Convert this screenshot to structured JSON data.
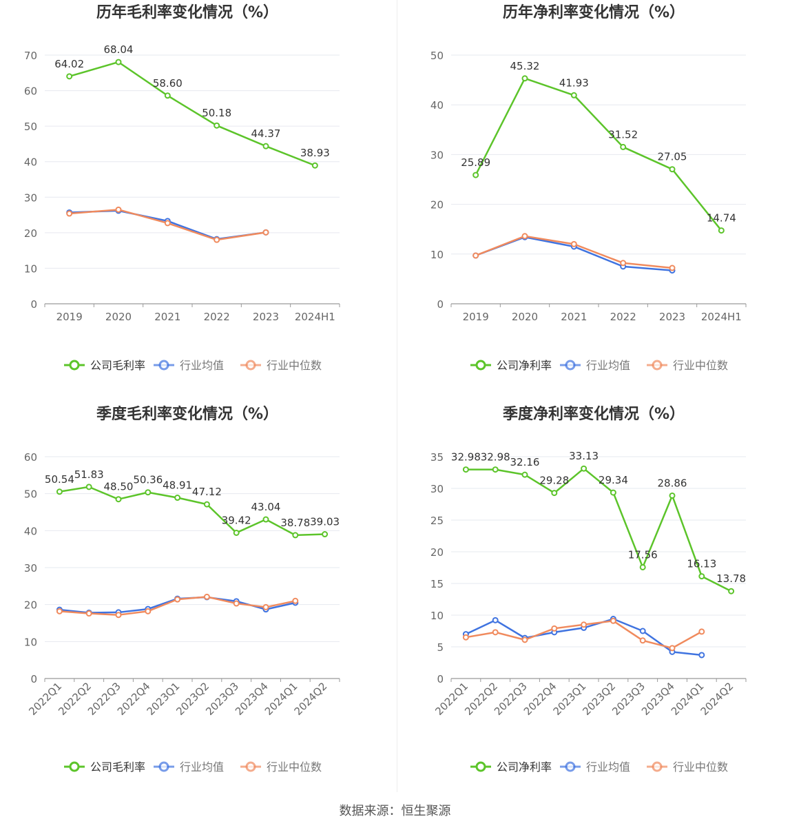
{
  "chart_data": [
    {
      "type": "line",
      "title": "历年毛利率变化情况（%）",
      "categories": [
        "2019",
        "2020",
        "2021",
        "2022",
        "2023",
        "2024H1"
      ],
      "series": [
        {
          "name": "公司毛利率",
          "values": [
            64.02,
            68.04,
            58.6,
            50.18,
            44.37,
            38.93
          ],
          "labels": [
            "64.02",
            "68.04",
            "58.60",
            "50.18",
            "44.37",
            "38.93"
          ],
          "color": "#5cc42a"
        },
        {
          "name": "行业均值",
          "values": [
            25.7,
            26.2,
            23.3,
            18.2,
            20.1,
            null
          ],
          "color": "#3f73e0"
        },
        {
          "name": "行业中位数",
          "values": [
            25.4,
            26.5,
            22.7,
            18.0,
            20.1,
            null
          ],
          "color": "#f08a5d"
        }
      ],
      "ylim": [
        0,
        70
      ],
      "yticks": [
        0,
        10,
        20,
        30,
        40,
        50,
        60,
        70
      ],
      "legend": "bottom",
      "grid": true
    },
    {
      "type": "line",
      "title": "历年净利率变化情况（%）",
      "categories": [
        "2019",
        "2020",
        "2021",
        "2022",
        "2023",
        "2024H1"
      ],
      "series": [
        {
          "name": "公司净利率",
          "values": [
            25.89,
            45.32,
            41.93,
            31.52,
            27.05,
            14.74
          ],
          "labels": [
            "25.89",
            "45.32",
            "41.93",
            "31.52",
            "27.05",
            "14.74"
          ],
          "color": "#5cc42a"
        },
        {
          "name": "行业均值",
          "values": [
            9.7,
            13.4,
            11.5,
            7.5,
            6.7,
            null
          ],
          "color": "#3f73e0"
        },
        {
          "name": "行业中位数",
          "values": [
            9.7,
            13.6,
            12.0,
            8.2,
            7.2,
            null
          ],
          "color": "#f08a5d"
        }
      ],
      "ylim": [
        0,
        50
      ],
      "yticks": [
        0,
        10,
        20,
        30,
        40,
        50
      ],
      "legend": "bottom",
      "grid": true
    },
    {
      "type": "line",
      "title": "季度毛利率变化情况（%）",
      "categories": [
        "2022Q1",
        "2022Q2",
        "2022Q3",
        "2022Q4",
        "2023Q1",
        "2023Q2",
        "2023Q3",
        "2023Q4",
        "2024Q1",
        "2024Q2"
      ],
      "series": [
        {
          "name": "公司毛利率",
          "values": [
            50.54,
            51.83,
            48.5,
            50.36,
            48.91,
            47.12,
            39.42,
            43.04,
            38.78,
            39.03
          ],
          "labels": [
            "50.54",
            "51.83",
            "48.50",
            "50.36",
            "48.91",
            "47.12",
            "39.42",
            "43.04",
            "38.78",
            "39.03"
          ],
          "color": "#5cc42a"
        },
        {
          "name": "行业均值",
          "values": [
            18.6,
            17.8,
            17.9,
            18.8,
            21.6,
            22.0,
            20.9,
            18.7,
            20.5,
            null
          ],
          "color": "#3f73e0"
        },
        {
          "name": "行业中位数",
          "values": [
            18.2,
            17.6,
            17.2,
            18.2,
            21.4,
            22.1,
            20.3,
            19.3,
            21.0,
            null
          ],
          "color": "#f08a5d"
        }
      ],
      "ylim": [
        0,
        60
      ],
      "yticks": [
        0,
        10,
        20,
        30,
        40,
        50,
        60
      ],
      "legend": "bottom",
      "grid": true
    },
    {
      "type": "line",
      "title": "季度净利率变化情况（%）",
      "categories": [
        "2022Q1",
        "2022Q2",
        "2022Q3",
        "2022Q4",
        "2023Q1",
        "2023Q2",
        "2023Q3",
        "2023Q4",
        "2024Q1",
        "2024Q2"
      ],
      "series": [
        {
          "name": "公司净利率",
          "values": [
            32.98,
            32.98,
            32.16,
            29.28,
            33.13,
            29.34,
            17.56,
            28.86,
            16.13,
            13.78
          ],
          "labels": [
            "32.98",
            "32.98",
            "32.16",
            "29.28",
            "33.13",
            "29.34",
            "17.56",
            "28.86",
            "16.13",
            "13.78"
          ],
          "color": "#5cc42a"
        },
        {
          "name": "行业均值",
          "values": [
            7.0,
            9.2,
            6.4,
            7.3,
            8.0,
            9.4,
            7.5,
            4.2,
            3.7,
            null
          ],
          "color": "#3f73e0"
        },
        {
          "name": "行业中位数",
          "values": [
            6.5,
            7.3,
            6.1,
            7.9,
            8.5,
            9.1,
            6.0,
            4.8,
            7.4,
            null
          ],
          "color": "#f08a5d"
        }
      ],
      "ylim": [
        0,
        35
      ],
      "yticks": [
        0,
        5,
        10,
        15,
        20,
        25,
        30,
        35
      ],
      "legend": "bottom",
      "grid": true
    }
  ],
  "footer": {
    "source": "数据来源：恒生聚源"
  }
}
